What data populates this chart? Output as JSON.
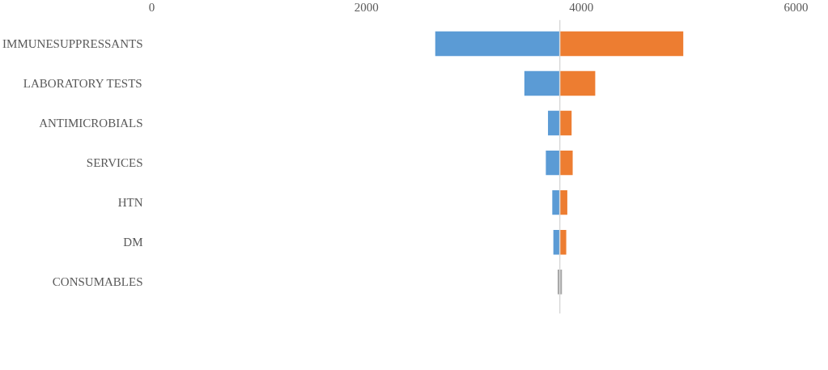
{
  "chart_data": {
    "type": "bar",
    "orientation": "horizontal",
    "categories": [
      "IMMUNESUPPRESSANTS",
      "LABORATORY TESTS",
      "ANTIMICROBIALS",
      "SERVICES",
      "HTN",
      "DM",
      "CONSUMABLES"
    ],
    "series": [
      {
        "colors": [
          "#5b9bd5",
          "#5b9bd5",
          "#5b9bd5",
          "#5b9bd5",
          "#5b9bd5",
          "#5b9bd5",
          "#a5a5a5"
        ],
        "base": [
          2640,
          3470,
          3690,
          3670,
          3730,
          3740,
          3780
        ],
        "values": [
          1160,
          330,
          110,
          130,
          70,
          60,
          20
        ]
      },
      {
        "colors": [
          "#ed7d31",
          "#ed7d31",
          "#ed7d31",
          "#ed7d31",
          "#ed7d31",
          "#ed7d31",
          "#a5a5a5"
        ],
        "base": [
          3800,
          3800,
          3800,
          3800,
          3800,
          3800,
          3800
        ],
        "values": [
          1150,
          330,
          110,
          120,
          70,
          60,
          20
        ]
      }
    ],
    "xlim": [
      0,
      6000
    ],
    "xticks": [
      0,
      2000,
      4000,
      6000
    ],
    "grid": false,
    "ref_lines": [
      {
        "axis": "x",
        "value": 3800,
        "color": "#d9d9d9"
      }
    ]
  }
}
